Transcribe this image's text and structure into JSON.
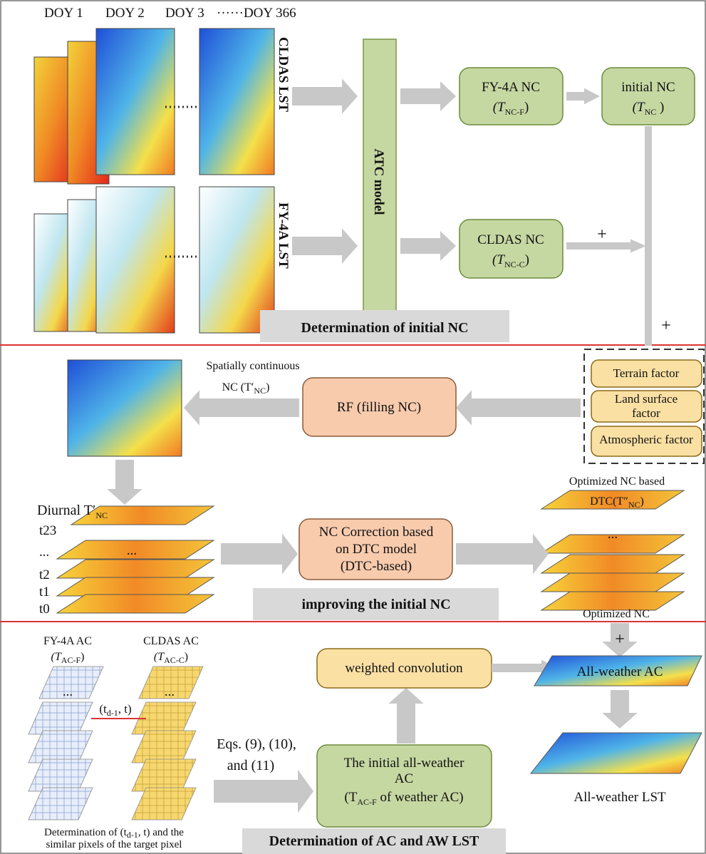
{
  "section1": {
    "doy_labels": [
      "DOY 1",
      "DOY 2",
      "DOY 3",
      "······DOY 366"
    ],
    "cldas_lst": "CLDAS LST",
    "fy4a_lst": "FY-4A LST",
    "atc_model": "ATC model",
    "fy4a_nc": {
      "label": "FY-4A NC",
      "prefix": "(T",
      "subscript": "NC-F",
      "suffix": ")"
    },
    "initial_nc": {
      "label": "initial NC",
      "prefix": "(T",
      "subscript": "NC",
      "suffix": " )"
    },
    "cldas_nc": {
      "label": "CLDAS NC",
      "prefix": "(T",
      "subscript": "NC-C",
      "suffix": ")"
    },
    "plus_signs": [
      "+",
      "+"
    ],
    "title": "Determination of initial NC"
  },
  "section2": {
    "continuous_label": {
      "line1": "Spatially continuous",
      "prefix": "NC (T′",
      "subscript": "NC",
      "suffix": ")"
    },
    "rf_box": "RF (filling NC)",
    "factors": [
      "Terrain factor",
      "Land surface factor",
      "Atmospheric factor"
    ],
    "diurnal": {
      "prefix": "Diurnal T′",
      "subscript": "NC"
    },
    "time_labels": [
      "t23",
      "...",
      "t2",
      "t1",
      "t0"
    ],
    "layer_dots": [
      "...",
      "..."
    ],
    "correction_box": [
      "NC Correction based",
      "on DTC model",
      "(DTC-based)"
    ],
    "optimized_label": {
      "line1": "Optimized NC  based",
      "prefix": "DTC(T″",
      "subscript": "NC",
      "suffix": ")"
    },
    "optimized_nc": "Optimized NC",
    "title": "improving the initial NC"
  },
  "section3": {
    "fy4a_ac": {
      "label": "FY-4A AC",
      "prefix": "(T",
      "subscript": "AC-F",
      "suffix": ")"
    },
    "cldas_ac": {
      "label": "CLDAS AC",
      "prefix": "(T",
      "subscript": "AC-C",
      "suffix": ")"
    },
    "dots": [
      "...",
      "..."
    ],
    "time_pair": {
      "prefix": "(t",
      "subscript": "d-1",
      "suffix": ", t)"
    },
    "equations": [
      "Eqs. (9), (10),",
      "and (11)"
    ],
    "weighted_convolution": "weighted convolution",
    "initial_aw": {
      "line1": "The initial all-weather",
      "line2": "AC",
      "prefix": "(T",
      "subscript": "AC-F",
      "suffix": " of weather AC)"
    },
    "plus": "+",
    "all_weather_ac": "All-weather AC",
    "all_weather_lst": "All-weather LST",
    "note": {
      "prefix": "Determination of  (t",
      "subscript": "d-1",
      "suffix": ", t) and the",
      "line2": "similar pixels of the target pixel"
    },
    "title": "Determination of AC and AW LST"
  }
}
